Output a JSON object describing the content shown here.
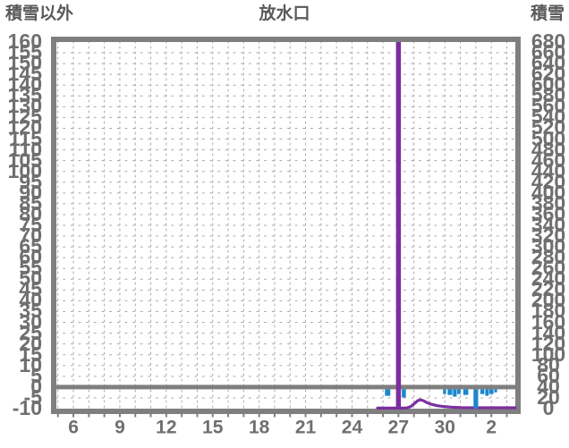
{
  "chart_data": {
    "type": "line",
    "title_left": "積雪以外",
    "title_center": "放水口",
    "title_right": "積雪",
    "left_axis": {
      "min": -10,
      "max": 160,
      "step": 5
    },
    "right_axis": {
      "min": 0,
      "max": 680,
      "step": 20
    },
    "x_axis": {
      "labels": [
        "6",
        "9",
        "12",
        "15",
        "18",
        "21",
        "24",
        "27",
        "30",
        "2"
      ],
      "first_label_day": 6,
      "label_step_days": 3,
      "day_min": 4.9,
      "day_max": 34.55,
      "grid_step_days": 1
    },
    "zero_line_value": 0,
    "grid": true,
    "colors": {
      "frame": "#7f7f7f",
      "grid": "#a8a8a8",
      "numbers": "#6f6f6f",
      "titles": "#595959",
      "line": "#7B2F9F",
      "bars": "#1C87CC"
    },
    "series": [
      {
        "name": "discharge-spike",
        "type": "vline",
        "day": 27,
        "off_scale": true,
        "width_days": 0.32
      },
      {
        "name": "discharge-line",
        "type": "line",
        "axis": "right",
        "points": [
          [
            25.65,
            1.0
          ],
          [
            27.3,
            1.0
          ],
          [
            27.55,
            1.5
          ],
          [
            27.8,
            4.0
          ],
          [
            28.05,
            10.0
          ],
          [
            28.25,
            15.0
          ],
          [
            28.4,
            16.5
          ],
          [
            28.6,
            15.0
          ],
          [
            28.85,
            11.0
          ],
          [
            29.15,
            8.0
          ],
          [
            29.5,
            5.5
          ],
          [
            29.9,
            4.0
          ],
          [
            30.4,
            2.8
          ],
          [
            31.0,
            2.0
          ],
          [
            32.0,
            1.6
          ],
          [
            34.55,
            1.6
          ]
        ]
      },
      {
        "name": "precip-bars",
        "type": "bars-down",
        "axis": "left",
        "from_value": 0,
        "bars": [
          {
            "day": 26.3,
            "width_days": 0.34,
            "depth": 3.0
          },
          {
            "day": 27.35,
            "width_days": 0.26,
            "depth": 3.8
          },
          {
            "day": 29.98,
            "width_days": 0.2,
            "depth": 2.2
          },
          {
            "day": 30.33,
            "width_days": 0.3,
            "depth": 2.6
          },
          {
            "day": 30.64,
            "width_days": 0.24,
            "depth": 3.4
          },
          {
            "day": 30.9,
            "width_days": 0.22,
            "depth": 2.2
          },
          {
            "day": 31.35,
            "width_days": 0.32,
            "depth": 2.6
          },
          {
            "day": 32.0,
            "width_days": 0.3,
            "depth": 9.0
          },
          {
            "day": 32.42,
            "width_days": 0.26,
            "depth": 2.2
          },
          {
            "day": 32.72,
            "width_days": 0.22,
            "depth": 3.0
          },
          {
            "day": 33.0,
            "width_days": 0.28,
            "depth": 2.2
          },
          {
            "day": 33.28,
            "width_days": 0.18,
            "depth": 1.4
          }
        ]
      }
    ]
  }
}
